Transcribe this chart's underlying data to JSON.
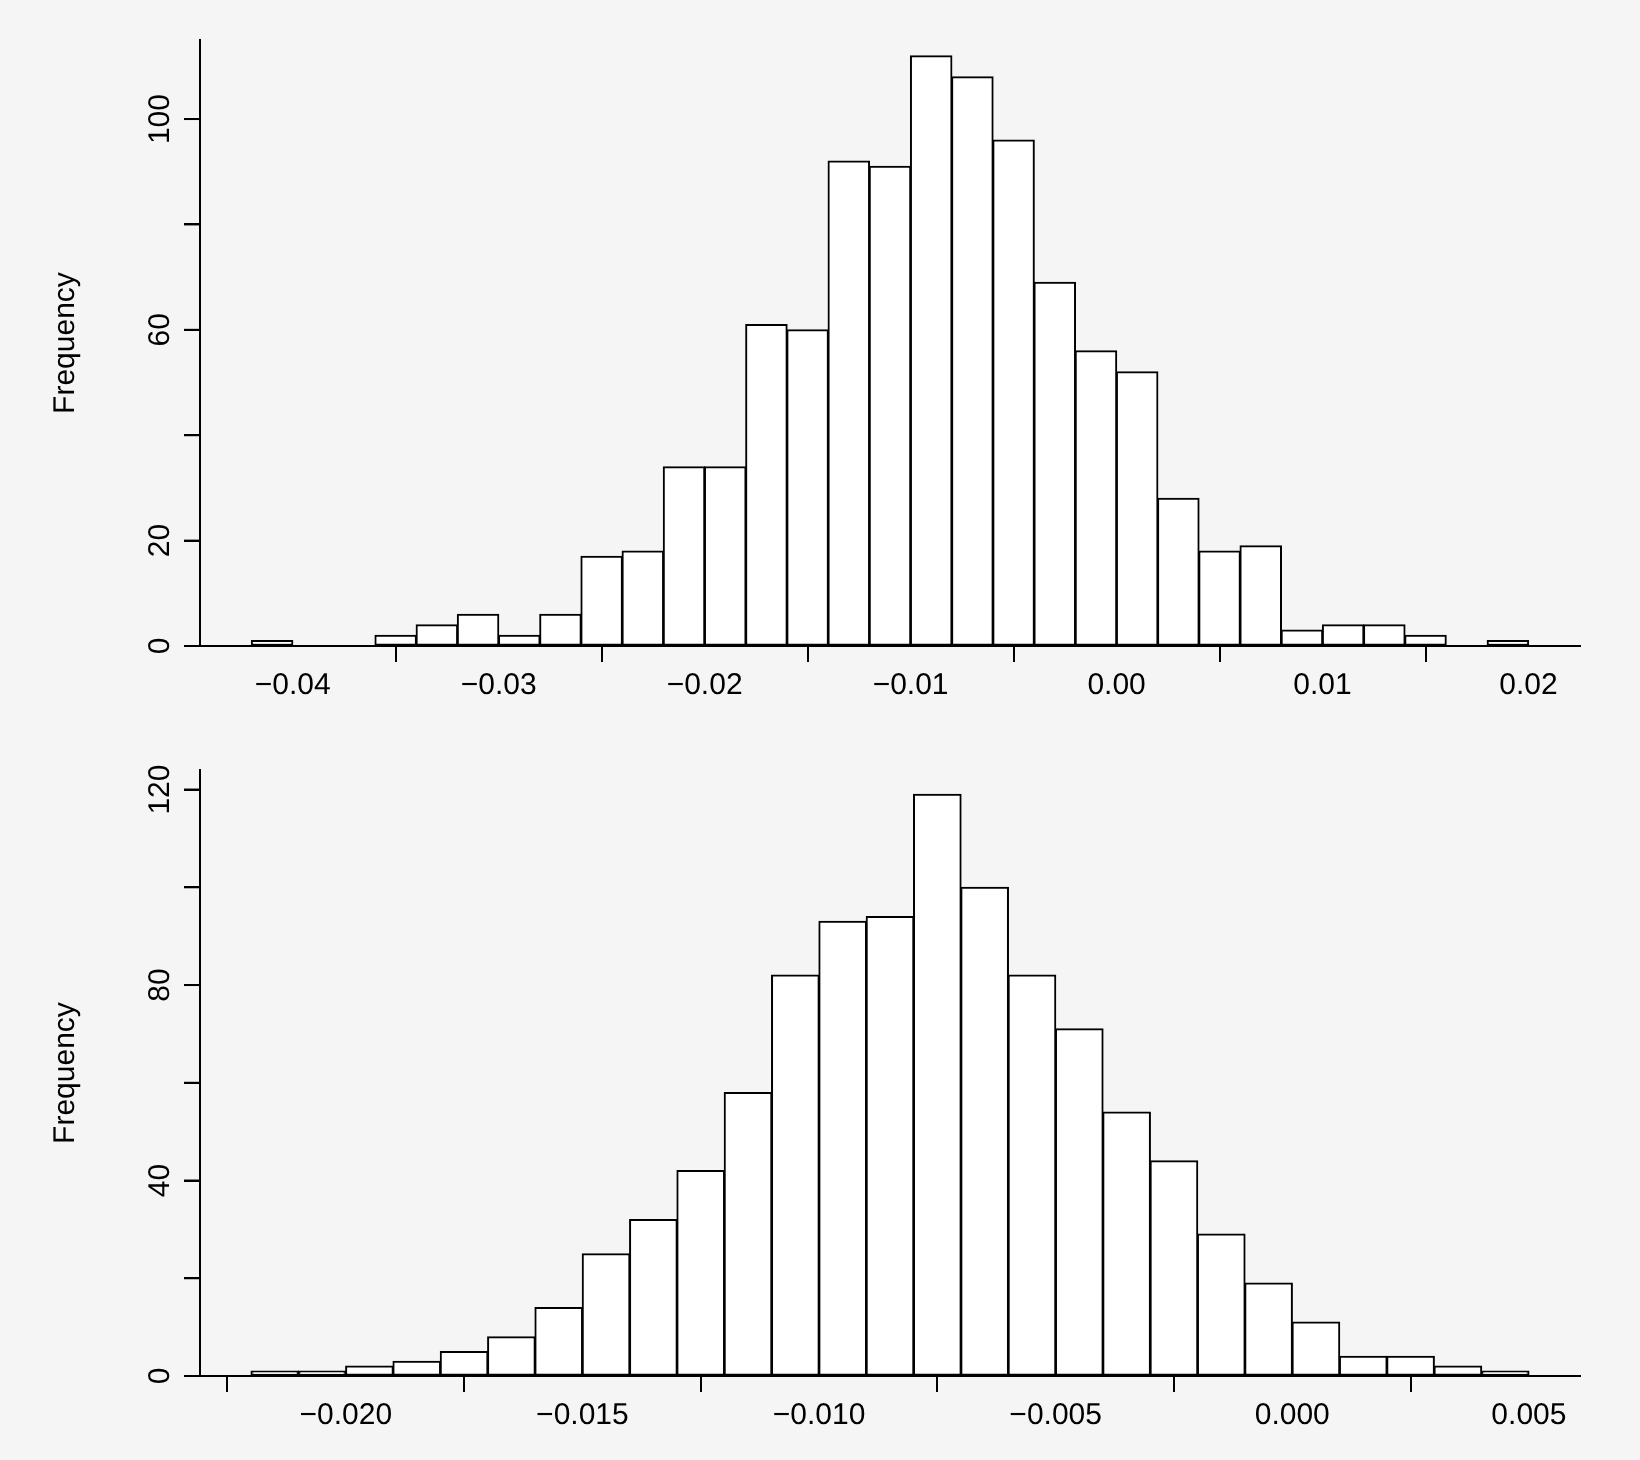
{
  "chart_data": [
    {
      "type": "histogram",
      "ylabel": "Frequency",
      "color": "#ffffff",
      "grid": false,
      "legend": false,
      "bins": [
        -0.042,
        -0.04,
        -0.038,
        -0.036,
        -0.034,
        -0.032,
        -0.03,
        -0.028,
        -0.026,
        -0.024,
        -0.022,
        -0.02,
        -0.018,
        -0.016,
        -0.014,
        -0.012,
        -0.01,
        -0.008,
        -0.006,
        -0.004,
        -0.002,
        0,
        0.002,
        0.004,
        0.006,
        0.008,
        0.01,
        0.012,
        0.014,
        0.016,
        0.018,
        0.02
      ],
      "values": [
        1,
        0,
        0,
        2,
        4,
        6,
        2,
        6,
        17,
        18,
        34,
        34,
        61,
        60,
        92,
        91,
        112,
        108,
        96,
        69,
        56,
        52,
        28,
        18,
        19,
        3,
        4,
        4,
        2,
        0,
        1
      ],
      "xlim": [
        -0.0445,
        0.0225
      ],
      "xticks": [
        {
          "value": -0.04,
          "label": "−0.04"
        },
        {
          "value": -0.03,
          "label": "−0.03"
        },
        {
          "value": -0.02,
          "label": "−0.02"
        },
        {
          "value": -0.01,
          "label": "−0.01"
        },
        {
          "value": 0,
          "label": "0.00"
        },
        {
          "value": 0.01,
          "label": "0.01"
        },
        {
          "value": 0.02,
          "label": "0.02"
        }
      ],
      "ylim": [
        0,
        115
      ],
      "yticks": [
        0,
        20,
        {
          "value": 40,
          "label": null
        },
        60,
        {
          "value": 80,
          "label": null
        },
        100
      ]
    },
    {
      "type": "histogram",
      "ylabel": "Frequency",
      "color": "#ffffff",
      "grid": false,
      "legend": false,
      "bins": [
        -0.022,
        -0.021,
        -0.02,
        -0.019,
        -0.018,
        -0.017,
        -0.016,
        -0.015,
        -0.014,
        -0.013,
        -0.012,
        -0.011,
        -0.01,
        -0.009,
        -0.008,
        -0.007,
        -0.006,
        -0.005,
        -0.004,
        -0.003,
        -0.002,
        -0.001,
        0,
        0.001,
        0.002,
        0.003,
        0.004,
        0.005
      ],
      "values": [
        1,
        1,
        2,
        3,
        5,
        8,
        14,
        25,
        32,
        42,
        58,
        82,
        93,
        94,
        119,
        100,
        82,
        71,
        54,
        44,
        29,
        19,
        11,
        4,
        4,
        2,
        1
      ],
      "xlim": [
        -0.02308,
        0.00608
      ],
      "xticks": [
        {
          "value": -0.02,
          "label": "−0.020"
        },
        {
          "value": -0.015,
          "label": "−0.015"
        },
        {
          "value": -0.01,
          "label": "−0.010"
        },
        {
          "value": -0.005,
          "label": "−0.005"
        },
        {
          "value": 0,
          "label": "0.000"
        },
        {
          "value": 0.005,
          "label": "0.005"
        }
      ],
      "ylim": [
        0,
        124
      ],
      "yticks": [
        0,
        {
          "value": 20,
          "label": null
        },
        40,
        {
          "value": 60,
          "label": null
        },
        80,
        {
          "value": 100,
          "label": null
        },
        120
      ]
    }
  ]
}
